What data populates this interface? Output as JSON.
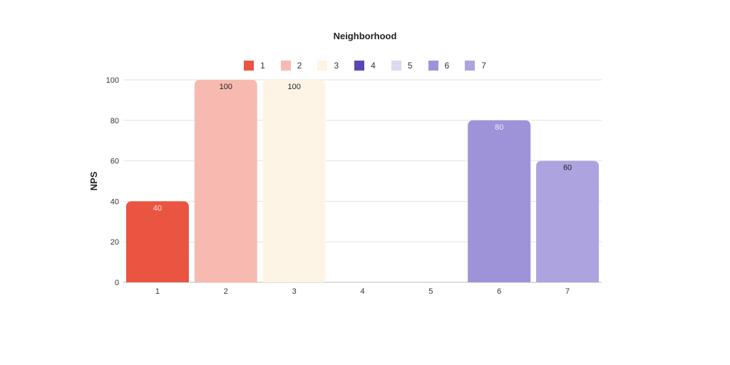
{
  "chart_data": {
    "type": "bar",
    "title": "Neighborhood",
    "xlabel": "",
    "ylabel": "NPS",
    "categories": [
      "1",
      "2",
      "3",
      "4",
      "5",
      "6",
      "7"
    ],
    "values": [
      40,
      100,
      100,
      0,
      0,
      80,
      60
    ],
    "data_labels": [
      "40",
      "100",
      "100",
      "",
      "",
      "80",
      "60"
    ],
    "colors": [
      "#ea5541",
      "#f7bab1",
      "#fdf4e5",
      "#5b46b6",
      "#dcd9f1",
      "#9e93d8",
      "#ada3de"
    ],
    "label_colors": [
      "#fbe0dc",
      "#222222",
      "#222222",
      "#222222",
      "#222222",
      "#eeeaff",
      "#222222"
    ],
    "ylim": [
      0,
      100
    ],
    "yticks": [
      0,
      20,
      40,
      60,
      80,
      100
    ],
    "grid": true,
    "legend": {
      "placement": "top-center",
      "entries": [
        "1",
        "2",
        "3",
        "4",
        "5",
        "6",
        "7"
      ]
    }
  }
}
